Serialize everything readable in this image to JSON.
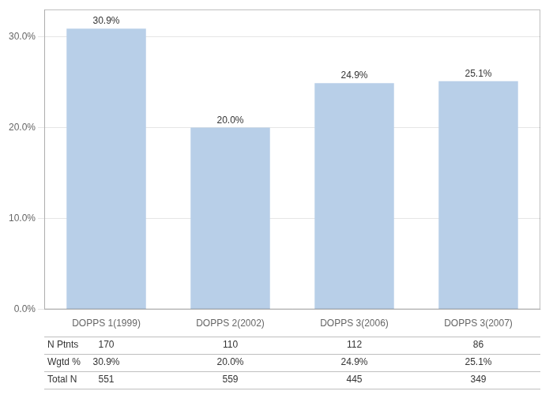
{
  "chart_data": {
    "type": "bar",
    "categories": [
      "DOPPS 1(1999)",
      "DOPPS 2(2002)",
      "DOPPS 3(2006)",
      "DOPPS 3(2007)"
    ],
    "values": [
      30.9,
      20.0,
      24.9,
      25.1
    ],
    "value_labels": [
      "30.9%",
      "20.0%",
      "24.9%",
      "25.1%"
    ],
    "data_labels": true,
    "color": "#b8cfe8",
    "ylim": [
      0,
      33
    ],
    "yticks": [
      {
        "value": 0,
        "label": "0.0%"
      },
      {
        "value": 10,
        "label": "10.0%"
      },
      {
        "value": 20,
        "label": "20.0%"
      },
      {
        "value": 30,
        "label": "30.0%"
      }
    ],
    "grid": true,
    "table": [
      {
        "label": "N Ptnts",
        "values": [
          "170",
          "110",
          "112",
          "86"
        ]
      },
      {
        "label": "Wgtd %",
        "values": [
          "30.9%",
          "20.0%",
          "24.9%",
          "25.1%"
        ]
      },
      {
        "label": "Total N",
        "values": [
          "551",
          "559",
          "445",
          "349"
        ]
      }
    ]
  }
}
